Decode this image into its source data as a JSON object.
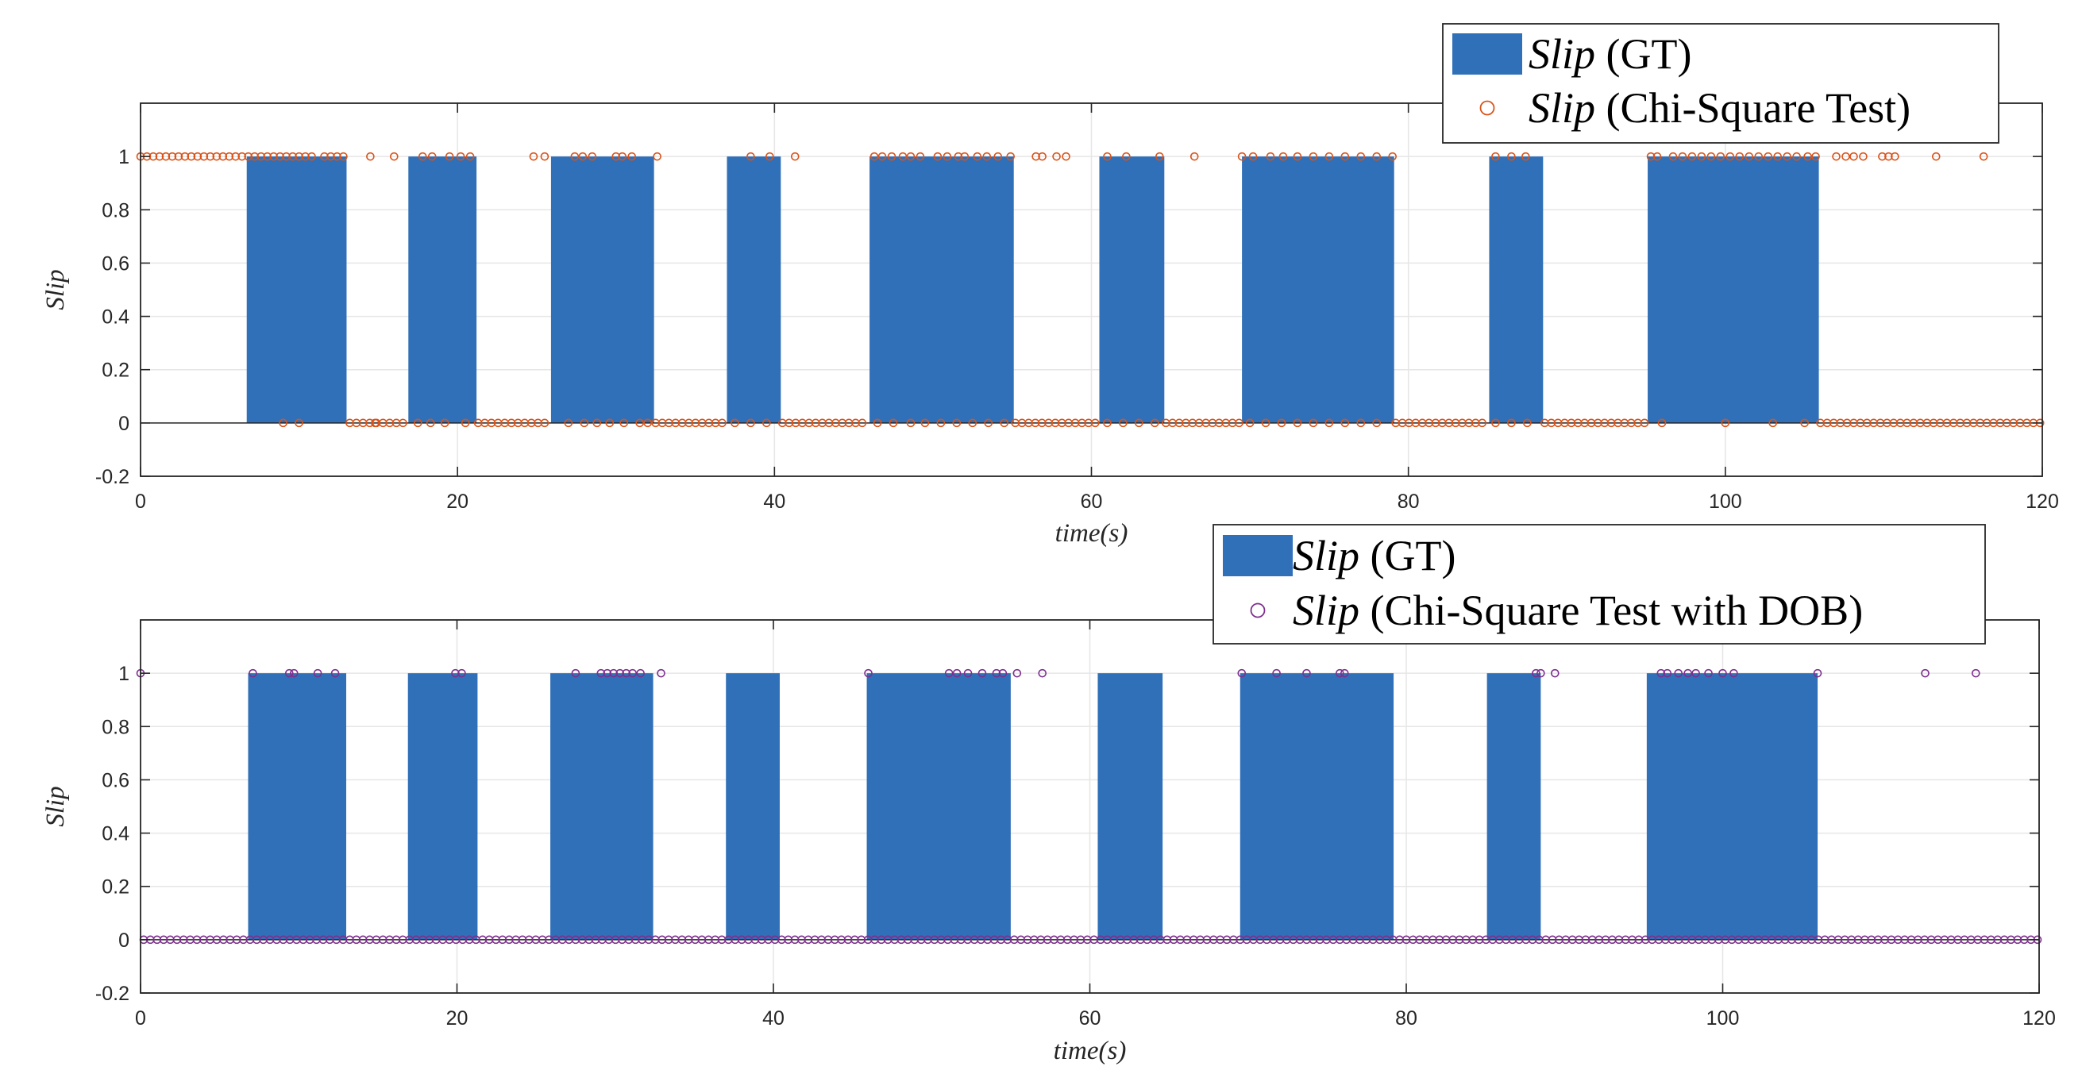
{
  "colors": {
    "gt_bar": "#3070B8",
    "detect_top": "#D95319",
    "detect_bottom": "#7E2F8E",
    "grid": "#E6E6E6",
    "axis": "#262626"
  },
  "chart_data": [
    {
      "type": "bar",
      "xlabel": "time(s)",
      "ylabel": "Slip",
      "xlim": [
        0,
        120
      ],
      "ylim": [
        -0.2,
        1.2
      ],
      "xticks": [
        "0",
        "20",
        "40",
        "60",
        "80",
        "100",
        "120"
      ],
      "yticks": [
        "-0.2",
        "0",
        "0.2",
        "0.4",
        "0.6",
        "0.8",
        "1"
      ],
      "grid": true,
      "legend_position": "top-right",
      "legend": [
        {
          "italic": "Slip",
          "rest": " (GT)",
          "marker": "bar"
        },
        {
          "italic": "Slip",
          "rest": " (Chi-Square Test)",
          "marker": "circle"
        }
      ],
      "gt_intervals": [
        [
          6.7,
          13.0
        ],
        [
          16.9,
          21.2
        ],
        [
          25.9,
          32.4
        ],
        [
          37.0,
          40.4
        ],
        [
          46.0,
          55.1
        ],
        [
          60.5,
          64.6
        ],
        [
          69.5,
          79.1
        ],
        [
          85.1,
          88.5
        ],
        [
          95.1,
          105.9
        ]
      ],
      "detection_ones": [
        0,
        0.4,
        0.8,
        1.2,
        1.6,
        2.0,
        2.4,
        2.8,
        3.2,
        3.6,
        4.0,
        4.4,
        4.8,
        5.2,
        5.6,
        6.0,
        6.4,
        6.8,
        7.2,
        7.6,
        8.0,
        8.4,
        8.8,
        9.2,
        9.6,
        10.0,
        10.4,
        10.8,
        11.6,
        12.0,
        12.4,
        12.8,
        14.5,
        16.0,
        17.8,
        18.4,
        19.5,
        20.2,
        20.8,
        24.8,
        25.5,
        27.4,
        27.9,
        28.5,
        30.0,
        30.4,
        31.0,
        32.6,
        38.5,
        39.7,
        41.3,
        46.3,
        46.8,
        47.4,
        48.1,
        48.6,
        49.2,
        50.3,
        50.9,
        51.6,
        52.0,
        52.8,
        53.4,
        54.1,
        54.9,
        56.5,
        56.9,
        57.8,
        58.4,
        61.0,
        62.2,
        64.3,
        66.5,
        69.5,
        70.2,
        71.3,
        72.1,
        73.0,
        74.0,
        75.0,
        76.0,
        77.0,
        78.0,
        79.0,
        85.5,
        86.5,
        87.4,
        95.3,
        95.7,
        96.7,
        97.3,
        97.9,
        98.5,
        99.1,
        99.7,
        100.3,
        100.9,
        101.5,
        102.1,
        102.7,
        103.3,
        103.9,
        104.5,
        105.2,
        105.7,
        107.0,
        107.6,
        108.1,
        108.7,
        109.9,
        110.3,
        110.7,
        113.3,
        116.3
      ],
      "detection_zero_dense_ranges": [
        [
          13.2,
          16.8
        ],
        [
          21.3,
          25.8
        ],
        [
          32.5,
          36.9
        ],
        [
          40.5,
          45.9
        ],
        [
          55.2,
          60.4
        ],
        [
          64.7,
          69.4
        ],
        [
          79.2,
          85.0
        ],
        [
          88.6,
          95.0
        ],
        [
          106.0,
          120.0
        ]
      ],
      "detection_zero_sparse": [
        9.0,
        10.0,
        14.8,
        17.5,
        18.3,
        19.2,
        20.5,
        27.0,
        28.0,
        28.8,
        29.6,
        30.5,
        31.5,
        32.0,
        37.5,
        38.5,
        39.5,
        46.5,
        47.5,
        48.6,
        49.5,
        50.5,
        51.5,
        52.5,
        53.5,
        54.5,
        61.0,
        62.0,
        63.0,
        64.0,
        70.0,
        71.0,
        72.0,
        73.0,
        74.0,
        75.0,
        76.0,
        77.0,
        78.0,
        85.5,
        86.5,
        87.5,
        96.0,
        100.0,
        103.0,
        105.0
      ]
    },
    {
      "type": "bar",
      "xlabel": "time(s)",
      "ylabel": "Slip",
      "xlim": [
        0,
        120
      ],
      "ylim": [
        -0.2,
        1.2
      ],
      "xticks": [
        "0",
        "20",
        "40",
        "60",
        "80",
        "100",
        "120"
      ],
      "yticks": [
        "-0.2",
        "0",
        "0.2",
        "0.4",
        "0.6",
        "0.8",
        "1"
      ],
      "grid": true,
      "legend_position": "top-right",
      "legend": [
        {
          "italic": "Slip",
          "rest": " (GT)",
          "marker": "bar"
        },
        {
          "italic": "Slip",
          "rest": " (Chi-Square Test with DOB)",
          "marker": "circle"
        }
      ],
      "gt_intervals": [
        [
          6.8,
          13.0
        ],
        [
          16.9,
          21.3
        ],
        [
          25.9,
          32.4
        ],
        [
          37.0,
          40.4
        ],
        [
          45.9,
          55.0
        ],
        [
          60.5,
          64.6
        ],
        [
          69.5,
          79.2
        ],
        [
          85.1,
          88.5
        ],
        [
          95.2,
          106.0
        ]
      ],
      "detection_ones": [
        0,
        7.1,
        9.4,
        9.7,
        11.2,
        12.3,
        19.9,
        20.3,
        27.5,
        29.1,
        29.5,
        29.9,
        30.3,
        30.7,
        31.1,
        31.6,
        32.9,
        46.0,
        51.1,
        51.6,
        52.3,
        53.2,
        54.1,
        54.5,
        55.4,
        57.0,
        69.6,
        71.8,
        73.7,
        75.8,
        76.1,
        88.2,
        88.5,
        89.4,
        96.1,
        96.5,
        97.2,
        97.8,
        98.3,
        99.1,
        100.0,
        100.7,
        106.0,
        112.8,
        116.0
      ],
      "detection_zero_dense_ranges": [
        [
          0.2,
          120.0
        ]
      ]
    }
  ]
}
